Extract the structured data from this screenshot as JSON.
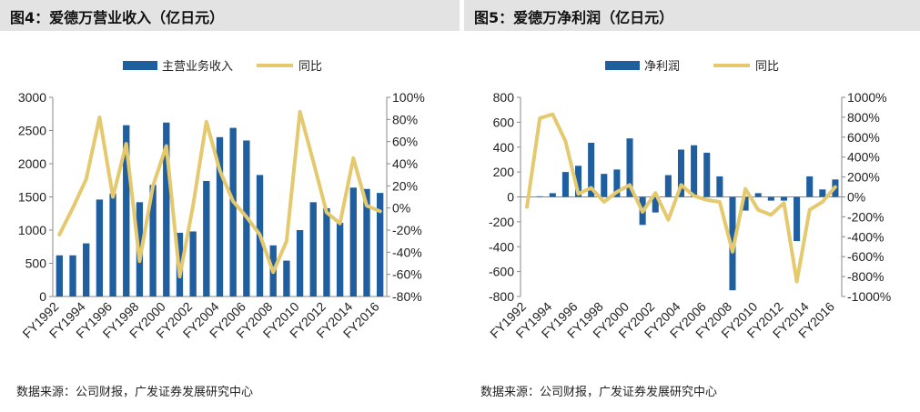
{
  "chart_data": [
    {
      "type": "bar",
      "figure_title": "图4：爱德万营业收入（亿日元）",
      "source": "数据来源：公司财报，广发证券发展研究中心",
      "categories": [
        "FY1992",
        "FY1993",
        "FY1994",
        "FY1995",
        "FY1996",
        "FY1997",
        "FY1998",
        "FY1999",
        "FY2000",
        "FY2001",
        "FY2002",
        "FY2003",
        "FY2004",
        "FY2005",
        "FY2006",
        "FY2007",
        "FY2008",
        "FY2009",
        "FY2010",
        "FY2011",
        "FY2012",
        "FY2013",
        "FY2014",
        "FY2015",
        "FY2016"
      ],
      "tick_labels": [
        "FY1992",
        "FY1994",
        "FY1996",
        "FY1998",
        "FY2000",
        "FY2002",
        "FY2004",
        "FY2006",
        "FY2008",
        "FY2010",
        "FY2012",
        "FY2014",
        "FY2016"
      ],
      "series": [
        {
          "name": "主营业务收入",
          "type": "bar",
          "axis": "left",
          "color": "#1f5f9f",
          "values": [
            620,
            620,
            800,
            1460,
            1550,
            2580,
            1420,
            1680,
            2620,
            960,
            980,
            1740,
            2400,
            2540,
            2350,
            1830,
            770,
            540,
            1000,
            1420,
            1330,
            1110,
            1640,
            1620,
            1560
          ]
        },
        {
          "name": "同比",
          "type": "line",
          "axis": "right",
          "color": "#e4c96e",
          "values": [
            -24,
            0,
            26,
            82,
            10,
            58,
            -48,
            20,
            56,
            -62,
            2,
            78,
            34,
            6,
            -8,
            -24,
            -58,
            -30,
            87,
            42,
            -4,
            -14,
            45,
            2,
            -3
          ]
        }
      ],
      "ylim_left": [
        0,
        3000
      ],
      "yticks_left": [
        "0",
        "500",
        "1000",
        "1500",
        "2000",
        "2500",
        "3000"
      ],
      "ylim_right": [
        -80,
        100
      ],
      "yticks_right": [
        "-80%",
        "-60%",
        "-40%",
        "-20%",
        "0%",
        "20%",
        "40%",
        "60%",
        "80%",
        "100%"
      ],
      "legend_position": "top"
    },
    {
      "type": "bar",
      "figure_title": "图5：爱德万净利润（亿日元）",
      "source": "数据来源：公司财报，广发证券发展研究中心",
      "categories": [
        "FY1992",
        "FY1993",
        "FY1994",
        "FY1995",
        "FY1996",
        "FY1997",
        "FY1998",
        "FY1999",
        "FY2000",
        "FY2001",
        "FY2002",
        "FY2003",
        "FY2004",
        "FY2005",
        "FY2006",
        "FY2007",
        "FY2008",
        "FY2009",
        "FY2010",
        "FY2011",
        "FY2012",
        "FY2013",
        "FY2014",
        "FY2015",
        "FY2016"
      ],
      "tick_labels": [
        "FY1992",
        "FY1994",
        "FY1996",
        "FY1998",
        "FY2000",
        "FY2002",
        "FY2004",
        "FY2006",
        "FY2008",
        "FY2010",
        "FY2012",
        "FY2014",
        "FY2016"
      ],
      "series": [
        {
          "name": "净利润",
          "type": "bar",
          "axis": "left",
          "color": "#1f5f9f",
          "values": [
            0,
            5,
            30,
            200,
            250,
            435,
            185,
            220,
            470,
            -225,
            -125,
            175,
            380,
            415,
            355,
            165,
            -750,
            -110,
            30,
            -30,
            -30,
            -355,
            165,
            60,
            140
          ]
        },
        {
          "name": "同比",
          "type": "line",
          "axis": "right",
          "color": "#e4c96e",
          "values": [
            -100,
            790,
            830,
            560,
            30,
            90,
            -50,
            50,
            120,
            -150,
            40,
            -230,
            120,
            10,
            -30,
            -50,
            -550,
            80,
            -130,
            -180,
            -60,
            -850,
            -130,
            -50,
            100
          ]
        }
      ],
      "ylim_left": [
        -800,
        800
      ],
      "yticks_left": [
        "-800",
        "-600",
        "-400",
        "-200",
        "0",
        "200",
        "400",
        "600",
        "800"
      ],
      "ylim_right": [
        -1000,
        1000
      ],
      "yticks_right": [
        "-1000%",
        "-800%",
        "-600%",
        "-400%",
        "-200%",
        "0%",
        "200%",
        "400%",
        "600%",
        "800%",
        "1000%"
      ],
      "legend_position": "top"
    }
  ]
}
